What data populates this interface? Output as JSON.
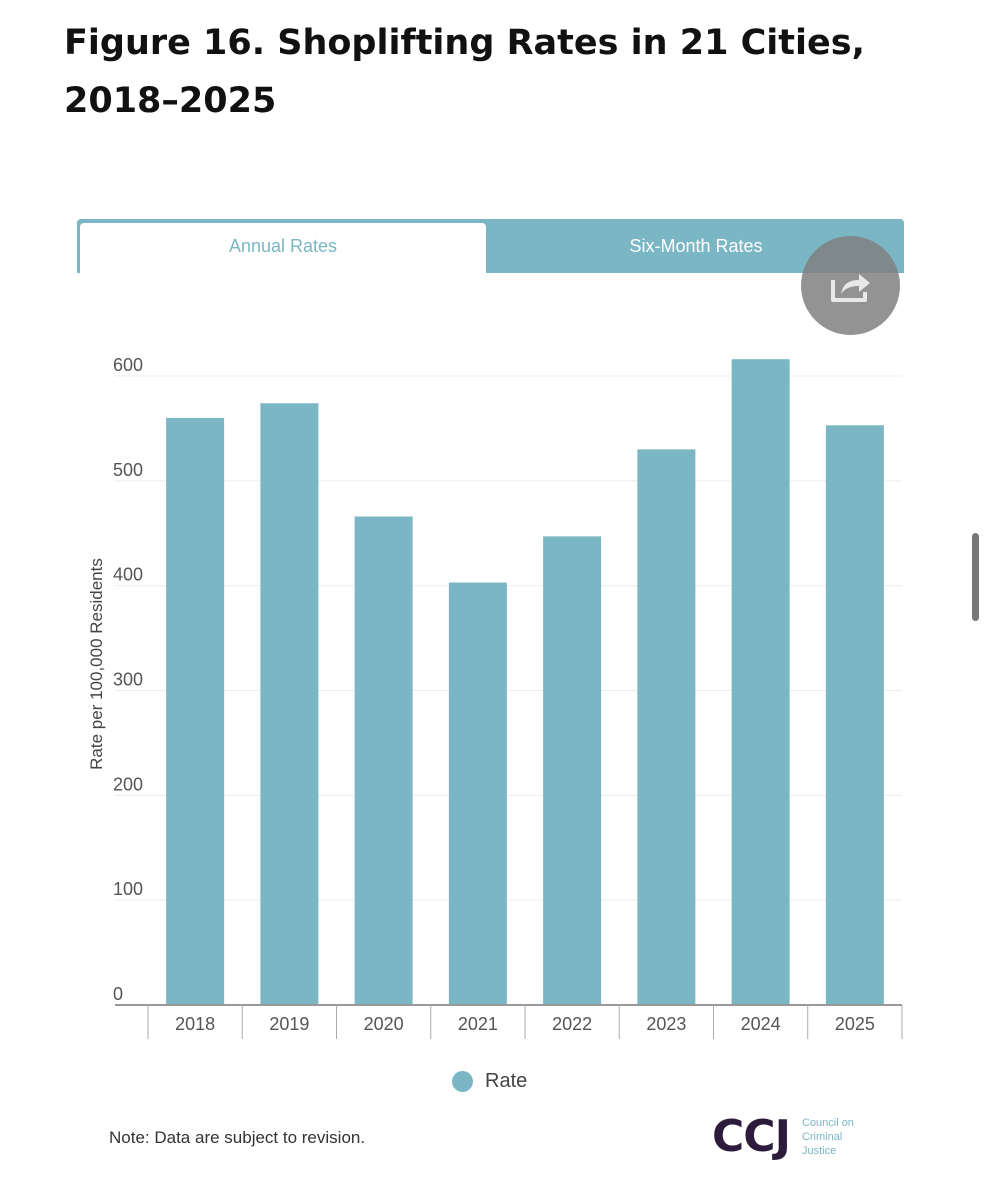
{
  "title": "Figure 16. Shoplifting Rates in 21 Cities, 2018–2025",
  "tabs": [
    {
      "label": "Annual Rates",
      "active": true
    },
    {
      "label": "Six-Month Rates",
      "active": false
    }
  ],
  "share_icon": "share-icon",
  "colors": {
    "bar": "#7bb6c5",
    "accent": "#7bb6c5",
    "logo": "#2c1b3a"
  },
  "chart_data": {
    "type": "bar",
    "categories": [
      "2018",
      "2019",
      "2020",
      "2021",
      "2022",
      "2023",
      "2024",
      "2025"
    ],
    "series": [
      {
        "name": "Rate",
        "values": [
          560,
          574,
          466,
          403,
          447,
          530,
          616,
          553
        ]
      }
    ],
    "title": "",
    "xlabel": "",
    "ylabel": "Rate per 100,000 Residents",
    "ylim": [
      0,
      600
    ],
    "yticks": [
      "0",
      "100",
      "200",
      "300",
      "400",
      "500",
      "600"
    ],
    "grid": true,
    "legend": "bottom-center"
  },
  "legend": {
    "label": "Rate"
  },
  "note": "Note: Data are subject to revision.",
  "logo": {
    "mark": "CCJ",
    "lines": [
      "Council on",
      "Criminal",
      "Justice"
    ]
  }
}
